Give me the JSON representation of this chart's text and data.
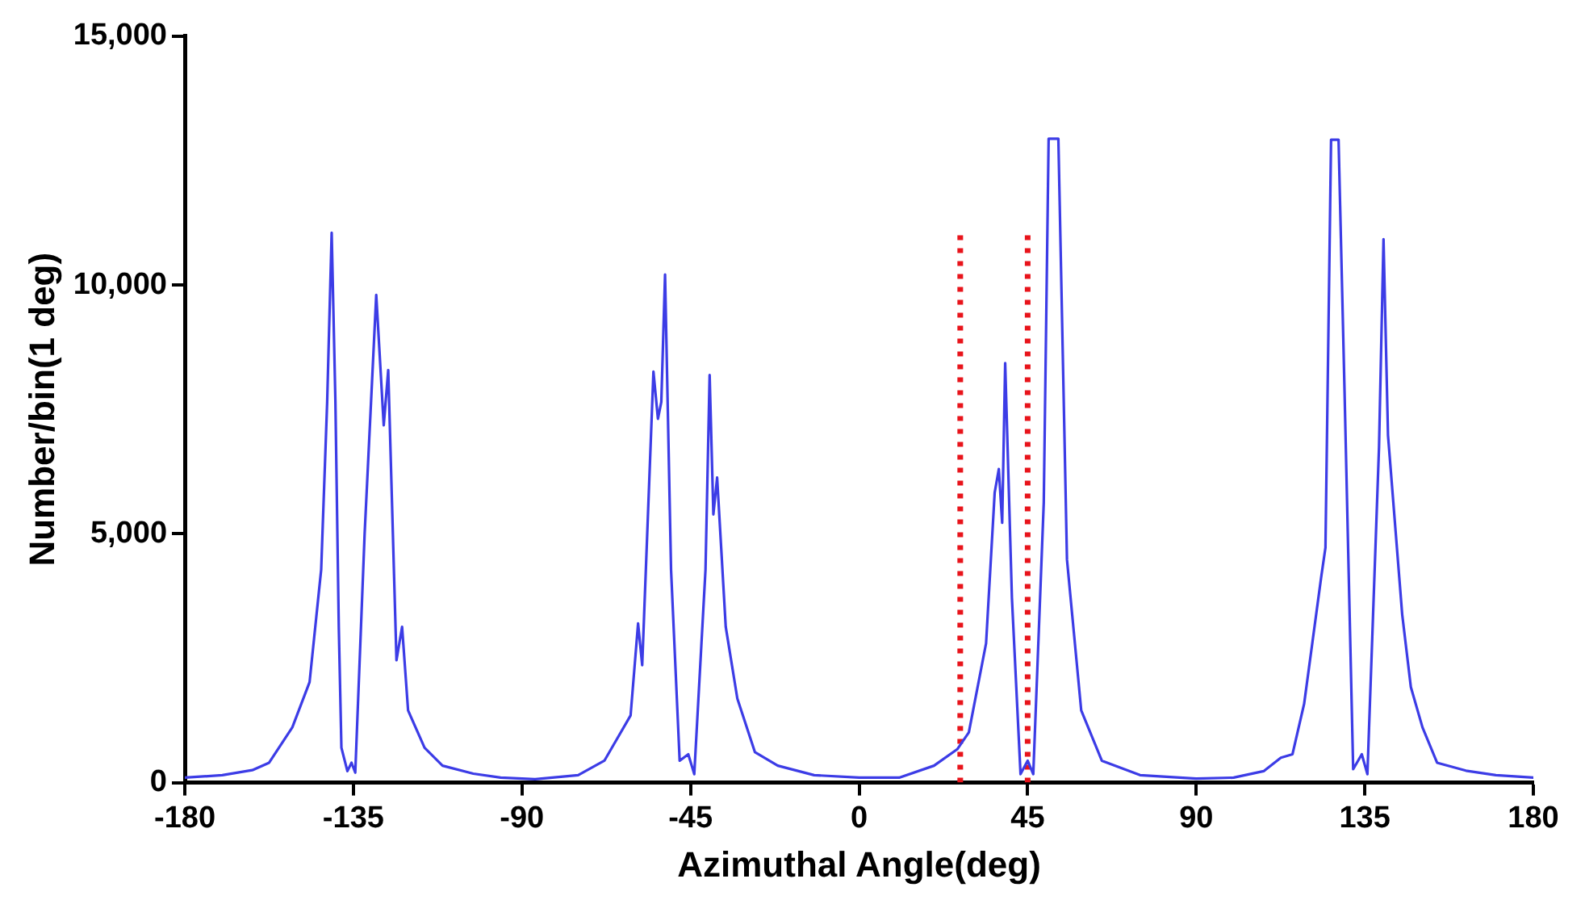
{
  "chart_data": {
    "type": "line",
    "xlabel": "Azimuthal Angle(deg)",
    "ylabel": "Number/bin(1 deg)",
    "xlim": [
      -180,
      180
    ],
    "xticks": [
      -180,
      -135,
      -90,
      -45,
      0,
      45,
      90,
      135,
      180
    ],
    "ylim": [
      0,
      15000
    ],
    "yticks": [
      0,
      {
        "value": 5000,
        "label": "5,000"
      },
      {
        "value": 10000,
        "label": "10,000"
      },
      {
        "value": 15000,
        "label": "15,000"
      }
    ],
    "grid": false,
    "legend": false,
    "marker": "none",
    "series": [
      {
        "color": "#3c3ce6",
        "line_style": "solid",
        "x": [
          -180,
          -170,
          -162,
          -157.5,
          -151.3,
          -146.7,
          -143.6,
          -142,
          -140.8,
          -139.8,
          -138.9,
          -138.2,
          -136.6,
          -135.5,
          -134.5,
          -132,
          -128.9,
          -126.9,
          -125.7,
          -123.5,
          -122,
          -120.4,
          -116,
          -111.2,
          -103,
          -95.7,
          -86.5,
          -75,
          -68,
          -61,
          -59,
          -57.9,
          -54.9,
          -53.7,
          -52.8,
          -51.8,
          -50.2,
          -47.9,
          -45.6,
          -44,
          -41,
          -39.9,
          -38.9,
          -37.9,
          -35.6,
          -32.5,
          -27.8,
          -21.7,
          -12,
          0,
          10.7,
          20,
          26.2,
          29.3,
          33.9,
          36.2,
          37.3,
          38.2,
          39,
          40.8,
          43.1,
          45,
          46.5,
          49.3,
          50.6,
          53.2,
          55.5,
          59.3,
          64.8,
          75,
          90,
          100,
          108,
          112.6,
          115.7,
          118.8,
          123.4,
          124.5,
          126,
          128,
          129.6,
          131.9,
          134.2,
          135.7,
          138.8,
          140,
          141.2,
          145,
          147.3,
          150.4,
          154.3,
          162,
          170,
          180
        ],
        "values": [
          100,
          150,
          250,
          400,
          1110,
          2020,
          4280,
          7650,
          11050,
          7650,
          3130,
          700,
          230,
          400,
          200,
          5000,
          9800,
          7180,
          8290,
          2460,
          3130,
          1450,
          700,
          340,
          180,
          100,
          70,
          150,
          440,
          1350,
          3200,
          2360,
          8260,
          7310,
          7650,
          10210,
          4280,
          440,
          570,
          170,
          4280,
          8190,
          5390,
          6130,
          3130,
          1690,
          610,
          340,
          150,
          100,
          100,
          340,
          670,
          1010,
          2800,
          5830,
          6300,
          5220,
          8430,
          3710,
          170,
          440,
          170,
          5630,
          12940,
          12940,
          4480,
          1450,
          440,
          150,
          80,
          100,
          230,
          500,
          570,
          1580,
          4150,
          4720,
          12920,
          12920,
          7850,
          270,
          570,
          170,
          6740,
          10920,
          6980,
          3370,
          1920,
          1110,
          400,
          240,
          150,
          100
        ]
      },
      {
        "type": "line",
        "color": "#e8141b",
        "line_style": "dotted",
        "x": [
          27,
          27
        ],
        "values": [
          0,
          11000
        ]
      },
      {
        "type": "line",
        "color": "#e8141b",
        "line_style": "dotted",
        "x": [
          45,
          45
        ],
        "values": [
          0,
          11000
        ]
      }
    ]
  }
}
